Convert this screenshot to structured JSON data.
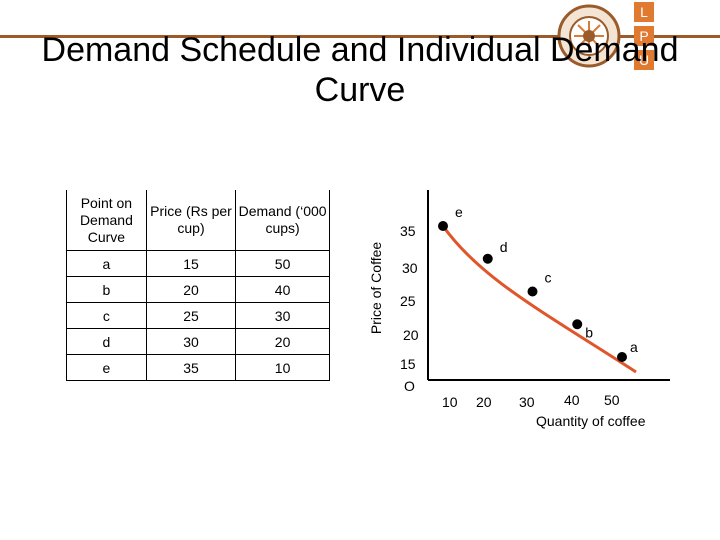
{
  "title": "Demand Schedule and Individual Demand Curve",
  "table": {
    "headers": [
      "Point on Demand Curve",
      "Price (Rs per cup)",
      "Demand (‘000 cups)"
    ],
    "rows": [
      [
        "a",
        "15",
        "50"
      ],
      [
        "b",
        "20",
        "40"
      ],
      [
        "c",
        "25",
        "30"
      ],
      [
        "d",
        "30",
        "20"
      ],
      [
        "e",
        "35",
        "10"
      ]
    ]
  },
  "colors": {
    "curve": "#e0552a",
    "points": "#000000",
    "topbar": "#9b5a2a"
  },
  "chart_data": {
    "type": "line",
    "xlabel": "Quantity of coffee",
    "ylabel": "Price of Coffee",
    "origin_label": "O",
    "x_ticks": [
      "10",
      "20",
      "30",
      "40",
      "50"
    ],
    "y_ticks": [
      "15",
      "20",
      "25",
      "30",
      "35"
    ],
    "points": [
      {
        "label": "e",
        "x": 10,
        "y": 35
      },
      {
        "label": "d",
        "x": 20,
        "y": 30
      },
      {
        "label": "c",
        "x": 30,
        "y": 25
      },
      {
        "label": "b",
        "x": 40,
        "y": 20
      },
      {
        "label": "a",
        "x": 50,
        "y": 15
      }
    ],
    "grid": false,
    "legend": "none"
  }
}
